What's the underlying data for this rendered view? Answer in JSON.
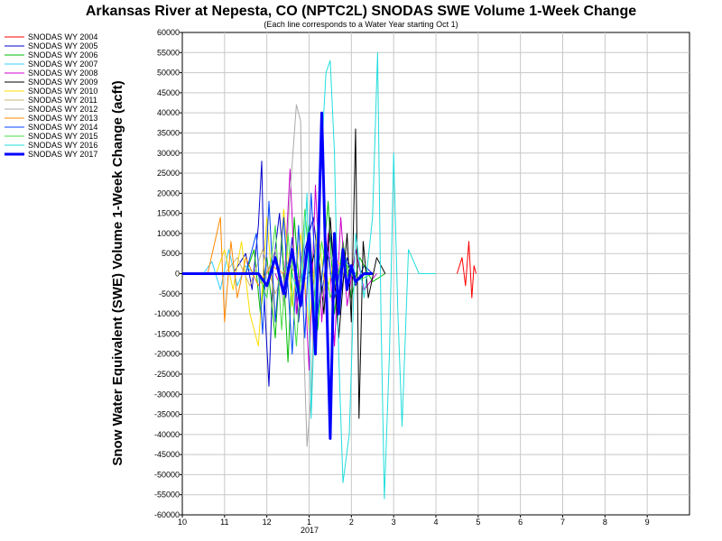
{
  "chart_data": {
    "type": "line",
    "title": "Arkansas River at Nepesta, CO (NPTC2L) SNODAS SWE Volume 1-Week Change",
    "subtitle": "(Each line corresponds to a Water Year starting Oct 1)",
    "xlabel": "",
    "ylabel": "Snow Water Equivalent (SWE) Volume 1-Week Change (acft)",
    "x_year_label": "2017",
    "ylim": [
      -60000,
      60000
    ],
    "y_ticks": [
      60000,
      55000,
      50000,
      45000,
      40000,
      35000,
      30000,
      25000,
      20000,
      15000,
      10000,
      5000,
      0,
      -5000,
      -10000,
      -15000,
      -20000,
      -25000,
      -30000,
      -35000,
      -40000,
      -45000,
      -50000,
      -55000,
      -60000
    ],
    "x_ticks": [
      "10",
      "11",
      "12",
      "1",
      "2",
      "3",
      "4",
      "5",
      "6",
      "7",
      "8",
      "9"
    ],
    "grid": true,
    "legend_position": "top-left",
    "series": [
      {
        "name": "SNODAS WY 2004",
        "color": "#ff0000",
        "width": 1,
        "points": [
          [
            6.5,
            0
          ],
          [
            6.62,
            4000
          ],
          [
            6.7,
            -3000
          ],
          [
            6.78,
            8000
          ],
          [
            6.85,
            -6000
          ],
          [
            6.9,
            2000
          ],
          [
            6.95,
            0
          ]
        ]
      },
      {
        "name": "SNODAS WY 2005",
        "color": "#0000cc",
        "width": 1,
        "points": [
          [
            1.2,
            0
          ],
          [
            1.5,
            5000
          ],
          [
            1.65,
            -4000
          ],
          [
            1.8,
            12000
          ],
          [
            1.88,
            28000
          ],
          [
            1.95,
            -8000
          ],
          [
            2.05,
            -28000
          ],
          [
            2.15,
            2000
          ],
          [
            2.3,
            15000
          ],
          [
            2.45,
            -6000
          ],
          [
            2.6,
            9000
          ],
          [
            2.75,
            -12000
          ],
          [
            2.9,
            6000
          ],
          [
            3.1,
            14000
          ],
          [
            3.3,
            -5000
          ],
          [
            3.5,
            10000
          ],
          [
            3.7,
            -8000
          ],
          [
            3.9,
            4000
          ],
          [
            4.1,
            -3000
          ],
          [
            4.3,
            2000
          ],
          [
            4.5,
            0
          ]
        ]
      },
      {
        "name": "SNODAS WY 2006",
        "color": "#00bb00",
        "width": 1,
        "points": [
          [
            1.5,
            0
          ],
          [
            1.7,
            6000
          ],
          [
            1.85,
            -10000
          ],
          [
            2.0,
            4000
          ],
          [
            2.2,
            -16000
          ],
          [
            2.35,
            10000
          ],
          [
            2.5,
            -22000
          ],
          [
            2.65,
            14000
          ],
          [
            2.8,
            -8000
          ],
          [
            3.0,
            12000
          ],
          [
            3.2,
            -14000
          ],
          [
            3.45,
            18000
          ],
          [
            3.6,
            -10000
          ],
          [
            3.8,
            8000
          ],
          [
            4.0,
            -6000
          ],
          [
            4.2,
            4000
          ],
          [
            4.5,
            -2000
          ],
          [
            4.8,
            0
          ]
        ]
      },
      {
        "name": "SNODAS WY 2007",
        "color": "#33ccff",
        "width": 1,
        "points": [
          [
            0.5,
            0
          ],
          [
            0.7,
            3000
          ],
          [
            0.9,
            -4000
          ],
          [
            1.1,
            6000
          ],
          [
            1.3,
            -3000
          ],
          [
            1.5,
            2000
          ],
          [
            1.7,
            0
          ]
        ]
      },
      {
        "name": "SNODAS WY 2008",
        "color": "#cc00cc",
        "width": 1,
        "points": [
          [
            2.2,
            0
          ],
          [
            2.4,
            -5000
          ],
          [
            2.55,
            26000
          ],
          [
            2.7,
            -10000
          ],
          [
            2.85,
            8000
          ],
          [
            3.0,
            -24000
          ],
          [
            3.15,
            22000
          ],
          [
            3.3,
            -12000
          ],
          [
            3.45,
            10000
          ],
          [
            3.6,
            -18000
          ],
          [
            3.75,
            14000
          ],
          [
            3.9,
            -8000
          ],
          [
            4.1,
            6000
          ],
          [
            4.3,
            -4000
          ],
          [
            4.6,
            0
          ]
        ]
      },
      {
        "name": "SNODAS WY 2009",
        "color": "#000000",
        "width": 1,
        "points": [
          [
            3.0,
            0
          ],
          [
            3.2,
            8000
          ],
          [
            3.35,
            -10000
          ],
          [
            3.5,
            14000
          ],
          [
            3.7,
            -16000
          ],
          [
            3.9,
            10000
          ],
          [
            4.0,
            -12000
          ],
          [
            4.1,
            36000
          ],
          [
            4.18,
            -36000
          ],
          [
            4.28,
            8000
          ],
          [
            4.4,
            -6000
          ],
          [
            4.6,
            4000
          ],
          [
            4.8,
            0
          ]
        ]
      },
      {
        "name": "SNODAS WY 2010",
        "color": "#ffdd00",
        "width": 1,
        "points": [
          [
            0.8,
            0
          ],
          [
            1.0,
            6000
          ],
          [
            1.2,
            -4000
          ],
          [
            1.4,
            8000
          ],
          [
            1.6,
            -10000
          ],
          [
            1.8,
            -18000
          ],
          [
            2.0,
            14000
          ],
          [
            2.2,
            -12000
          ],
          [
            2.4,
            16000
          ],
          [
            2.6,
            -8000
          ],
          [
            2.8,
            10000
          ],
          [
            3.0,
            -14000
          ],
          [
            3.2,
            12000
          ],
          [
            3.4,
            -6000
          ],
          [
            3.6,
            4000
          ],
          [
            3.9,
            0
          ]
        ]
      },
      {
        "name": "SNODAS WY 2011",
        "color": "#c8b478",
        "width": 1,
        "points": [
          [
            1.0,
            0
          ],
          [
            1.3,
            4000
          ],
          [
            1.6,
            -3000
          ],
          [
            1.9,
            6000
          ],
          [
            2.2,
            -5000
          ],
          [
            2.5,
            3000
          ],
          [
            2.8,
            -2000
          ],
          [
            3.1,
            0
          ]
        ]
      },
      {
        "name": "SNODAS WY 2012",
        "color": "#aaaaaa",
        "width": 1,
        "points": [
          [
            2.0,
            0
          ],
          [
            2.2,
            6000
          ],
          [
            2.4,
            -8000
          ],
          [
            2.55,
            20000
          ],
          [
            2.7,
            42000
          ],
          [
            2.8,
            38000
          ],
          [
            2.88,
            -20000
          ],
          [
            2.95,
            -43000
          ],
          [
            3.05,
            -30000
          ],
          [
            3.15,
            8000
          ],
          [
            3.3,
            -6000
          ],
          [
            3.5,
            4000
          ],
          [
            3.8,
            0
          ]
        ]
      },
      {
        "name": "SNODAS WY 2013",
        "color": "#ff8800",
        "width": 1,
        "points": [
          [
            0.6,
            0
          ],
          [
            0.9,
            14000
          ],
          [
            1.0,
            -12000
          ],
          [
            1.15,
            8000
          ],
          [
            1.3,
            -6000
          ],
          [
            1.5,
            4000
          ],
          [
            1.8,
            -3000
          ],
          [
            2.1,
            2000
          ],
          [
            2.4,
            0
          ]
        ]
      },
      {
        "name": "SNODAS WY 2014",
        "color": "#0044ff",
        "width": 1,
        "points": [
          [
            1.5,
            0
          ],
          [
            1.75,
            10000
          ],
          [
            1.9,
            -15000
          ],
          [
            2.05,
            18000
          ],
          [
            2.2,
            -12000
          ],
          [
            2.4,
            14000
          ],
          [
            2.6,
            -20000
          ],
          [
            2.75,
            12000
          ],
          [
            2.9,
            -16000
          ],
          [
            3.05,
            20000
          ],
          [
            3.2,
            -10000
          ],
          [
            3.4,
            8000
          ],
          [
            3.6,
            -6000
          ],
          [
            3.8,
            4000
          ],
          [
            4.1,
            0
          ]
        ]
      },
      {
        "name": "SNODAS WY 2015",
        "color": "#44dd44",
        "width": 1,
        "points": [
          [
            1.8,
            0
          ],
          [
            2.0,
            -6000
          ],
          [
            2.2,
            12000
          ],
          [
            2.35,
            -14000
          ],
          [
            2.5,
            10000
          ],
          [
            2.7,
            -18000
          ],
          [
            2.9,
            16000
          ],
          [
            3.1,
            -10000
          ],
          [
            3.3,
            8000
          ],
          [
            3.5,
            -6000
          ],
          [
            3.8,
            4000
          ],
          [
            4.1,
            -2000
          ],
          [
            4.5,
            0
          ]
        ]
      },
      {
        "name": "SNODAS WY 2016",
        "color": "#22dddd",
        "width": 1,
        "points": [
          [
            2.6,
            0
          ],
          [
            2.8,
            -8000
          ],
          [
            2.95,
            20000
          ],
          [
            3.05,
            -36000
          ],
          [
            3.2,
            12000
          ],
          [
            3.4,
            50000
          ],
          [
            3.5,
            53000
          ],
          [
            3.6,
            30000
          ],
          [
            3.7,
            -20000
          ],
          [
            3.8,
            -52000
          ],
          [
            3.95,
            -40000
          ],
          [
            4.1,
            10000
          ],
          [
            4.3,
            -6000
          ],
          [
            4.5,
            14000
          ],
          [
            4.62,
            55000
          ],
          [
            4.7,
            -10000
          ],
          [
            4.78,
            -56000
          ],
          [
            4.9,
            -20000
          ],
          [
            5.0,
            30000
          ],
          [
            5.1,
            -10000
          ],
          [
            5.2,
            -38000
          ],
          [
            5.35,
            6000
          ],
          [
            5.6,
            0
          ],
          [
            6.0,
            0
          ]
        ]
      },
      {
        "name": "SNODAS WY 2017",
        "color": "#0000ff",
        "width": 3,
        "points": [
          [
            0.0,
            0
          ],
          [
            1.8,
            0
          ],
          [
            2.0,
            -3000
          ],
          [
            2.2,
            4000
          ],
          [
            2.4,
            -5000
          ],
          [
            2.6,
            6000
          ],
          [
            2.8,
            -8000
          ],
          [
            3.0,
            10000
          ],
          [
            3.15,
            -20000
          ],
          [
            3.3,
            40000
          ],
          [
            3.4,
            0
          ],
          [
            3.5,
            -41000
          ],
          [
            3.6,
            10000
          ],
          [
            3.7,
            -10000
          ],
          [
            3.8,
            6000
          ],
          [
            3.9,
            -4000
          ],
          [
            4.0,
            2000
          ],
          [
            4.1,
            -2000
          ],
          [
            4.3,
            0
          ],
          [
            4.5,
            0
          ]
        ]
      }
    ]
  }
}
